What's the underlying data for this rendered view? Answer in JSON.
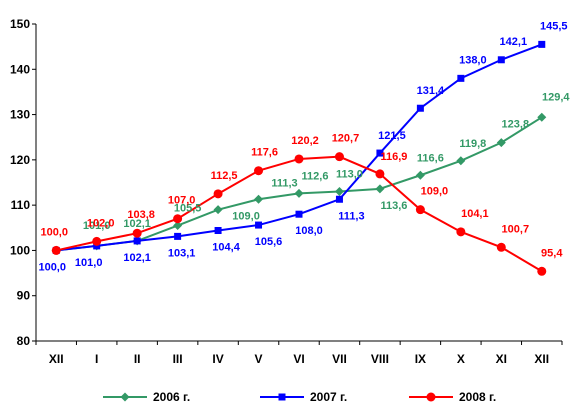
{
  "chart_data": {
    "type": "line",
    "categories": [
      "XII",
      "I",
      "II",
      "III",
      "IV",
      "V",
      "VI",
      "VII",
      "VIII",
      "IX",
      "X",
      "XI",
      "XII"
    ],
    "ylim": [
      80,
      150
    ],
    "yticks": [
      80,
      90,
      100,
      110,
      120,
      130,
      140,
      150
    ],
    "grid": false,
    "legend_position": "bottom",
    "series": [
      {
        "name": "2006 г.",
        "color": "#339966",
        "marker": "diamond",
        "values": [
          100.0,
          101.0,
          102.1,
          105.5,
          109.0,
          111.3,
          112.6,
          113.0,
          113.6,
          116.6,
          119.8,
          123.8,
          129.4
        ],
        "labels": [
          "",
          "101,0",
          "102,1",
          "105,5",
          "109,0",
          "111,3",
          "112,6",
          "113,0",
          "113,6",
          "116,6",
          "119,8",
          "123,8",
          "129,4"
        ]
      },
      {
        "name": "2007 г.",
        "color": "#0000ff",
        "marker": "square",
        "values": [
          100.0,
          101.0,
          102.1,
          103.1,
          104.4,
          105.6,
          108.0,
          111.3,
          121.5,
          131.4,
          138.0,
          142.1,
          145.5
        ],
        "labels": [
          "100,0",
          "101,0",
          "102,1",
          "103,1",
          "104,4",
          "105,6",
          "108,0",
          "111,3",
          "121,5",
          "131,4",
          "138,0",
          "142,1",
          "145,5"
        ]
      },
      {
        "name": "2008 г.",
        "color": "#ff0000",
        "marker": "circle",
        "values": [
          100.0,
          102.0,
          103.8,
          107.0,
          112.5,
          117.6,
          120.2,
          120.7,
          116.9,
          109.0,
          104.1,
          100.7,
          95.4
        ],
        "labels": [
          "100,0",
          "102,0",
          "103,8",
          "107,0",
          "112,5",
          "117,6",
          "120,2",
          "120,7",
          "116,9",
          "109,0",
          "104,1",
          "100,7",
          "95,4"
        ]
      }
    ]
  }
}
